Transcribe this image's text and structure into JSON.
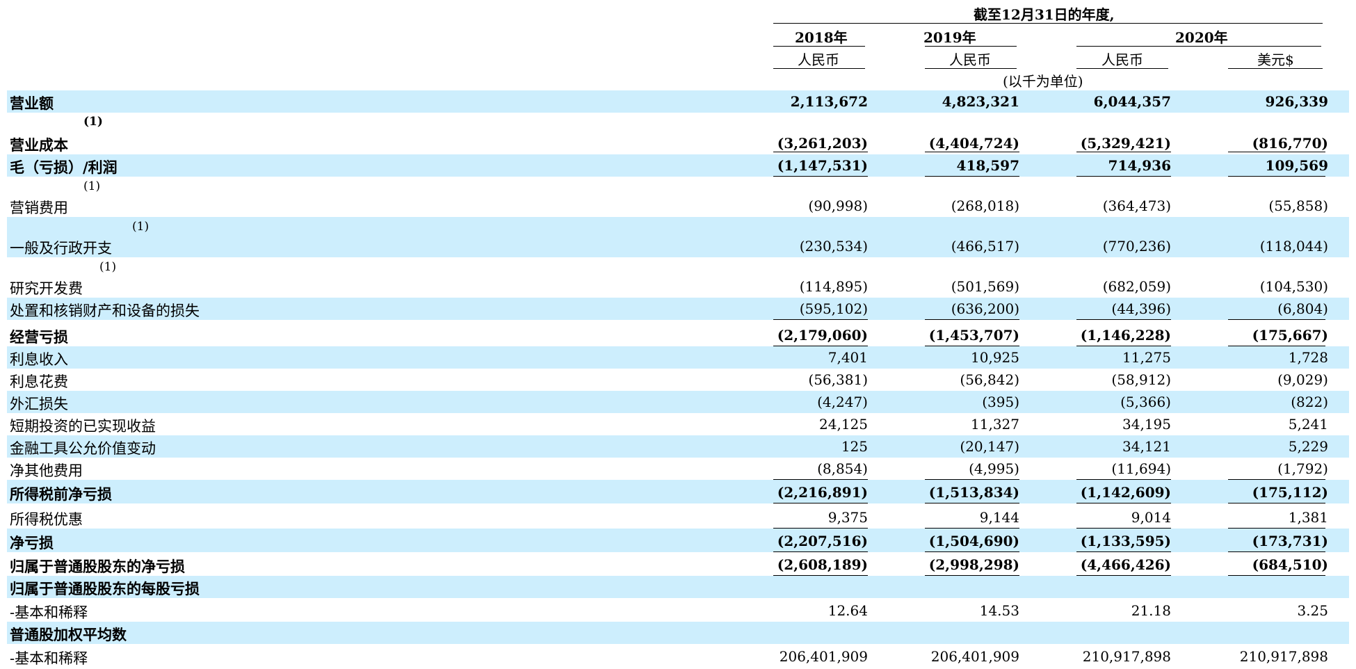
{
  "header": {
    "period_title": "截至12月31日的年度,",
    "years": [
      "2018年",
      "2019年",
      "2020年"
    ],
    "currencies": [
      "人民币",
      "人民币",
      "人民币",
      "美元$"
    ],
    "unit_note": "(以千为单位)"
  },
  "rows": [
    {
      "label": "营业额",
      "values": [
        "2,113,672",
        "4,823,321",
        "6,044,357",
        "926,339"
      ]
    },
    {
      "label": "营业成本",
      "values": [
        "(3,261,203)",
        "(4,404,724)",
        "(5,329,421)",
        "(816,770)"
      ]
    },
    {
      "label": "毛（亏损）/利润",
      "values": [
        "(1,147,531)",
        "418,597",
        "714,936",
        "109,569"
      ]
    },
    {
      "label": "营销费用",
      "values": [
        "(90,998)",
        "(268,018)",
        "(364,473)",
        "(55,858)"
      ]
    },
    {
      "label": "一般及行政开支",
      "values": [
        "(230,534)",
        "(466,517)",
        "(770,236)",
        "(118,044)"
      ]
    },
    {
      "label": "研究开发费",
      "values": [
        "(114,895)",
        "(501,569)",
        "(682,059)",
        "(104,530)"
      ]
    },
    {
      "label": "处置和核销财产和设备的损失",
      "values": [
        "(595,102)",
        "(636,200)",
        "(44,396)",
        "(6,804)"
      ]
    },
    {
      "label": "经营亏损",
      "values": [
        "(2,179,060)",
        "(1,453,707)",
        "(1,146,228)",
        "(175,667)"
      ]
    },
    {
      "label": "利息收入",
      "values": [
        "7,401",
        "10,925",
        "11,275",
        "1,728"
      ]
    },
    {
      "label": "利息花费",
      "values": [
        "(56,381)",
        "(56,842)",
        "(58,912)",
        "(9,029)"
      ]
    },
    {
      "label": "外汇损失",
      "values": [
        "(4,247)",
        "(395)",
        "(5,366)",
        "(822)"
      ]
    },
    {
      "label": "短期投资的已实现收益",
      "values": [
        "24,125",
        "11,327",
        "34,195",
        "5,241"
      ]
    },
    {
      "label": "金融工具公允价值变动",
      "values": [
        "125",
        "(20,147)",
        "34,121",
        "5,229"
      ]
    },
    {
      "label": "净其他费用",
      "values": [
        "(8,854)",
        "(4,995)",
        "(11,694)",
        "(1,792)"
      ]
    },
    {
      "label": "所得税前净亏损",
      "values": [
        "(2,216,891)",
        "(1,513,834)",
        "(1,142,609)",
        "(175,112)"
      ]
    },
    {
      "label": "所得税优惠",
      "values": [
        "9,375",
        "9,144",
        "9,014",
        "1,381"
      ]
    },
    {
      "label": "净亏损",
      "values": [
        "(2,207,516)",
        "(1,504,690)",
        "(1,133,595)",
        "(173,731)"
      ]
    },
    {
      "label": "归属于普通股股东的净亏损",
      "values": [
        "(2,608,189)",
        "(2,998,298)",
        "(4,466,426)",
        "(684,510)"
      ]
    },
    {
      "label": "归属于普通股股东的每股亏损",
      "values": []
    },
    {
      "label": "-基本和稀释",
      "values": [
        "12.64",
        "14.53",
        "21.18",
        "3.25"
      ]
    },
    {
      "label": "普通股加权平均数",
      "values": []
    },
    {
      "label": "-基本和稀释",
      "values": [
        "206,401,909",
        "206,401,909",
        "210,917,898",
        "210,917,898"
      ]
    }
  ],
  "footnote_mark": "(1)"
}
